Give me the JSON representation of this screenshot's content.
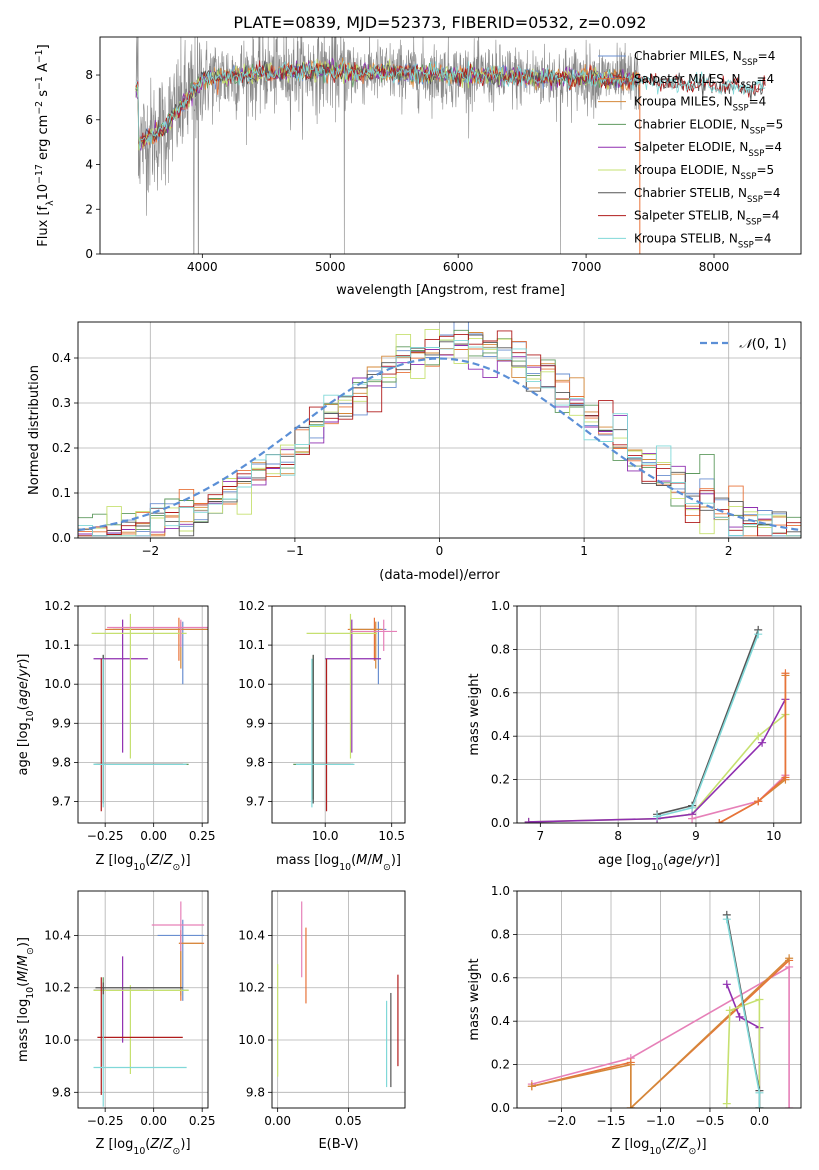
{
  "title": "PLATE=0839, MJD=52373, FIBERID=0532, z=0.092",
  "colors": {
    "Chabrier MILES": "#6a8fd0",
    "Salpeter MILES": "#e8733a",
    "Kroupa MILES": "#d4883a",
    "Chabrier ELODIE": "#5f9a5f",
    "Salpeter ELODIE": "#8f2fb0",
    "Kroupa ELODIE": "#c6e070",
    "Chabrier STELIB": "#555555",
    "Salpeter STELIB": "#b01c1c",
    "Kroupa STELIB": "#80d8d8",
    "Pink": "#e680b8",
    "Grid": "#b0b0b0"
  },
  "chart_data": [
    {
      "type": "line",
      "id": "spectrum",
      "xlabel": "wavelength [Angstrom, rest frame]",
      "ylabel": "Flux [f_λ 10^-17 erg cm^-2 s^-1 A^-1]",
      "xlim": [
        3200,
        8680
      ],
      "ylim": [
        0,
        9.7
      ],
      "xticks": [
        4000,
        5000,
        6000,
        7000,
        8000
      ],
      "yticks": [
        0,
        2,
        4,
        6,
        8
      ],
      "grid": false,
      "legend_position": "right",
      "legend": [
        {
          "label": "Chabrier MILES, N_SSP=4",
          "color": "#6a8fd0"
        },
        {
          "label": "Salpeter MILES, N_SSP=4",
          "color": "#e8733a"
        },
        {
          "label": "Kroupa MILES, N_SSP=4",
          "color": "#d4883a"
        },
        {
          "label": "Chabrier ELODIE, N_SSP=5",
          "color": "#5f9a5f"
        },
        {
          "label": "Salpeter ELODIE, N_SSP=4",
          "color": "#8f2fb0"
        },
        {
          "label": "Kroupa ELODIE, N_SSP=5",
          "color": "#c6e070"
        },
        {
          "label": "Chabrier STELIB, N_SSP=4",
          "color": "#555555"
        },
        {
          "label": "Salpeter STELIB, N_SSP=4",
          "color": "#b01c1c"
        },
        {
          "label": "Kroupa STELIB, N_SSP=4",
          "color": "#80d8d8"
        }
      ],
      "continuum": {
        "x": [
          3500,
          3700,
          4000,
          4500,
          5000,
          5500,
          6000,
          6500,
          7000,
          7500,
          8000,
          8400
        ],
        "y": [
          4.9,
          5.6,
          7.8,
          8.1,
          8.2,
          8.1,
          8.0,
          7.9,
          7.9,
          7.7,
          7.5,
          7.4
        ]
      },
      "data_range": [
        3480,
        7420
      ],
      "model_range": [
        3480,
        8400
      ]
    },
    {
      "type": "histogram",
      "id": "residuals",
      "xlabel": "(data-model)/error",
      "ylabel": "Normed distribution",
      "xlim": [
        -2.5,
        2.5
      ],
      "ylim": [
        0,
        0.48
      ],
      "xticks": [
        -2,
        -1,
        0,
        1,
        2
      ],
      "yticks": [
        0,
        0.1,
        0.2,
        0.3,
        0.4
      ],
      "grid": true,
      "legend": [
        {
          "label": "N(0,1)",
          "color": "#5b8fd6",
          "style": "dashed"
        }
      ],
      "legend_position": "top-right",
      "bin_width": 0.1,
      "bins_from": -2.5,
      "bins_to": 2.5
    },
    {
      "type": "errorbar",
      "id": "age-vs-Z",
      "xlabel": "Z [log10(Z/Z⊙)]",
      "ylabel": "age  [log10(age/yr)]",
      "xlim": [
        -0.39,
        0.28
      ],
      "ylim": [
        9.645,
        10.2
      ],
      "xticks": [
        -0.25,
        0.0,
        0.25
      ],
      "yticks": [
        9.7,
        9.8,
        9.9,
        10.0,
        10.1,
        10.2
      ],
      "grid": true,
      "points": [
        {
          "series": "Chabrier MILES",
          "x": 0.15,
          "y": 10.14,
          "xerr": [
            0.36,
            0.17
          ],
          "yerr": [
            0.14,
            0.02
          ]
        },
        {
          "series": "Salpeter MILES",
          "x": 0.13,
          "y": 10.14,
          "xerr": [
            0.38,
            0.17
          ],
          "yerr": [
            0.08,
            0.03
          ]
        },
        {
          "series": "Kroupa MILES",
          "x": 0.14,
          "y": 10.14,
          "xerr": [
            0.37,
            0.16
          ],
          "yerr": [
            0.1,
            0.02
          ]
        },
        {
          "series": "Chabrier ELODIE",
          "x": -0.26,
          "y": 9.795,
          "xerr": [
            0.05,
            0.44
          ],
          "yerr": [
            0.09,
            0.28
          ]
        },
        {
          "series": "Salpeter ELODIE",
          "x": -0.16,
          "y": 10.065,
          "xerr": [
            0.15,
            0.13
          ],
          "yerr": [
            0.24,
            0.1
          ]
        },
        {
          "series": "Kroupa ELODIE",
          "x": -0.12,
          "y": 10.13,
          "xerr": [
            0.2,
            0.29
          ],
          "yerr": [
            0.32,
            0.05
          ]
        },
        {
          "series": "Chabrier STELIB",
          "x": -0.26,
          "y": 9.795,
          "xerr": [
            0.04,
            0.41
          ],
          "yerr": [
            0.1,
            0.28
          ]
        },
        {
          "series": "Salpeter STELIB",
          "x": -0.27,
          "y": 9.795,
          "xerr": [
            0.02,
            0.42
          ],
          "yerr": [
            0.12,
            0.27
          ]
        },
        {
          "series": "Kroupa STELIB",
          "x": -0.26,
          "y": 9.795,
          "xerr": [
            0.05,
            0.43
          ],
          "yerr": [
            0.11,
            0.27
          ]
        },
        {
          "series": "Pink",
          "x": 0.14,
          "y": 10.145,
          "xerr": [
            0.38,
            0.15
          ],
          "yerr": [
            0.05,
            0.02
          ]
        }
      ]
    },
    {
      "type": "errorbar",
      "id": "age-vs-mass",
      "xlabel": "mass [log10(M/M⊙)]",
      "ylabel": "",
      "xlim": [
        9.6,
        10.6
      ],
      "ylim": [
        9.645,
        10.2
      ],
      "xticks": [
        10.0,
        10.5
      ],
      "yticks": [
        9.7,
        9.8,
        9.9,
        10.0,
        10.1,
        10.2
      ],
      "grid": true,
      "points": [
        {
          "series": "Chabrier MILES",
          "x": 10.4,
          "y": 10.14,
          "xerr": [
            0.2,
            0.06
          ],
          "yerr": [
            0.14,
            0.02
          ]
        },
        {
          "series": "Salpeter MILES",
          "x": 10.37,
          "y": 10.14,
          "xerr": [
            0.2,
            0.05
          ],
          "yerr": [
            0.08,
            0.03
          ]
        },
        {
          "series": "Kroupa MILES",
          "x": 10.38,
          "y": 10.14,
          "xerr": [
            0.2,
            0.05
          ],
          "yerr": [
            0.1,
            0.02
          ]
        },
        {
          "series": "Chabrier ELODIE",
          "x": 9.91,
          "y": 9.795,
          "xerr": [
            0.15,
            0.2
          ],
          "yerr": [
            0.09,
            0.28
          ]
        },
        {
          "series": "Salpeter ELODIE",
          "x": 10.2,
          "y": 10.065,
          "xerr": [
            0.2,
            0.22
          ],
          "yerr": [
            0.24,
            0.1
          ]
        },
        {
          "series": "Kroupa ELODIE",
          "x": 10.19,
          "y": 10.13,
          "xerr": [
            0.33,
            0.2
          ],
          "yerr": [
            0.32,
            0.05
          ]
        },
        {
          "series": "Chabrier STELIB",
          "x": 9.91,
          "y": 9.795,
          "xerr": [
            0.1,
            0.3
          ],
          "yerr": [
            0.1,
            0.28
          ]
        },
        {
          "series": "Salpeter STELIB",
          "x": 10.01,
          "y": 9.795,
          "xerr": [
            0.08,
            0.18
          ],
          "yerr": [
            0.12,
            0.27
          ]
        },
        {
          "series": "Kroupa STELIB",
          "x": 9.9,
          "y": 9.795,
          "xerr": [
            0.12,
            0.32
          ],
          "yerr": [
            0.11,
            0.27
          ]
        },
        {
          "series": "Pink",
          "x": 10.44,
          "y": 10.135,
          "xerr": [
            0.25,
            0.1
          ],
          "yerr": [
            0.05,
            0.03
          ]
        }
      ]
    },
    {
      "type": "line",
      "id": "weight-vs-age",
      "xlabel": "age  [log10(age/yr)]",
      "ylabel": "mass weight",
      "xlim": [
        6.7,
        10.35
      ],
      "ylim": [
        0,
        1.0
      ],
      "xticks": [
        7,
        8,
        9,
        10
      ],
      "yticks": [
        0.0,
        0.2,
        0.4,
        0.6,
        0.8,
        1.0
      ],
      "grid": true,
      "series": [
        {
          "name": "Kroupa ELODIE",
          "x": [
            6.85,
            8.5,
            8.95,
            9.8,
            10.15
          ],
          "y": [
            0.005,
            0.02,
            0.04,
            0.4,
            0.5
          ]
        },
        {
          "name": "Salpeter ELODIE",
          "x": [
            6.85,
            8.5,
            8.95,
            9.85,
            10.15
          ],
          "y": [
            0.005,
            0.02,
            0.04,
            0.37,
            0.57
          ]
        },
        {
          "name": "Chabrier STELIB",
          "x": [
            8.5,
            8.95,
            9.8
          ],
          "y": [
            0.04,
            0.08,
            0.89
          ]
        },
        {
          "name": "Kroupa STELIB",
          "x": [
            8.5,
            8.95,
            9.8
          ],
          "y": [
            0.03,
            0.07,
            0.87
          ]
        },
        {
          "name": "Pink",
          "x": [
            8.95,
            9.8,
            10.15
          ],
          "y": [
            0.02,
            0.1,
            0.22
          ]
        },
        {
          "name": "Kroupa MILES",
          "x": [
            9.3,
            9.8,
            10.15,
            10.15
          ],
          "y": [
            0.0,
            0.1,
            0.2,
            0.68
          ]
        },
        {
          "name": "Salpeter MILES",
          "x": [
            9.3,
            9.8,
            10.15,
            10.15
          ],
          "y": [
            0.0,
            0.1,
            0.21,
            0.69
          ]
        }
      ]
    },
    {
      "type": "errorbar",
      "id": "mass-vs-Z",
      "xlabel": "Z [log10(Z/Z⊙)]",
      "ylabel": "mass [log10(M/M⊙)]",
      "xlim": [
        -0.39,
        0.28
      ],
      "ylim": [
        9.74,
        10.57
      ],
      "xticks": [
        -0.25,
        0.0,
        0.25
      ],
      "yticks": [
        9.8,
        10.0,
        10.2,
        10.4
      ],
      "grid": true,
      "points": [
        {
          "series": "Chabrier MILES",
          "x": 0.15,
          "y": 10.4,
          "xerr": [
            0.13,
            0.11
          ],
          "yerr": [
            0.25,
            0.06
          ]
        },
        {
          "series": "Salpeter MILES",
          "x": 0.14,
          "y": 10.37,
          "xerr": [
            0.01,
            0.12
          ],
          "yerr": [
            0.22,
            0.05
          ]
        },
        {
          "series": "Kroupa MILES",
          "x": 0.14,
          "y": 10.37,
          "xerr": [
            0.01,
            0.11
          ],
          "yerr": [
            0.2,
            0.05
          ]
        },
        {
          "series": "Chabrier ELODIE",
          "x": -0.26,
          "y": 10.19,
          "xerr": [
            0.05,
            0.44
          ],
          "yerr": [
            0.15,
            0.05
          ]
        },
        {
          "series": "Salpeter ELODIE",
          "x": -0.16,
          "y": 10.19,
          "xerr": [
            0.15,
            0.13
          ],
          "yerr": [
            0.2,
            0.13
          ]
        },
        {
          "series": "Kroupa ELODIE",
          "x": -0.12,
          "y": 10.19,
          "xerr": [
            0.19,
            0.3
          ],
          "yerr": [
            0.32,
            0.02
          ]
        },
        {
          "series": "Chabrier STELIB",
          "x": -0.26,
          "y": 10.2,
          "xerr": [
            0.04,
            0.41
          ],
          "yerr": [
            0.3,
            0.02
          ]
        },
        {
          "series": "Salpeter STELIB",
          "x": -0.27,
          "y": 10.01,
          "xerr": [
            0.02,
            0.42
          ],
          "yerr": [
            0.22,
            0.23
          ]
        },
        {
          "series": "Kroupa STELIB",
          "x": -0.26,
          "y": 9.895,
          "xerr": [
            0.05,
            0.43
          ],
          "yerr": [
            0.15,
            0.28
          ]
        },
        {
          "series": "Pink",
          "x": 0.14,
          "y": 10.44,
          "xerr": [
            0.15,
            0.12
          ],
          "yerr": [
            0.1,
            0.09
          ]
        }
      ]
    },
    {
      "type": "errorbar",
      "id": "mass-vs-ebv",
      "xlabel": "E(B-V)",
      "ylabel": "",
      "xlim": [
        -0.004,
        0.09
      ],
      "ylim": [
        9.74,
        10.57
      ],
      "xticks": [
        0.0,
        0.05
      ],
      "yticks": [
        9.8,
        10.0,
        10.2,
        10.4
      ],
      "grid": true,
      "points": [
        {
          "series": "Kroupa ELODIE",
          "x": 0.0,
          "y": 10.0,
          "xerr": [
            0,
            0
          ],
          "yerr": [
            0.14,
            0.29
          ]
        },
        {
          "series": "Pink",
          "x": 0.017,
          "y": 10.38,
          "xerr": [
            0,
            0
          ],
          "yerr": [
            0.14,
            0.15
          ]
        },
        {
          "series": "Salpeter MILES",
          "x": 0.02,
          "y": 10.28,
          "xerr": [
            0,
            0
          ],
          "yerr": [
            0.14,
            0.15
          ]
        },
        {
          "series": "Kroupa STELIB",
          "x": 0.077,
          "y": 9.95,
          "xerr": [
            0,
            0
          ],
          "yerr": [
            0.13,
            0.2
          ]
        },
        {
          "series": "Chabrier STELIB",
          "x": 0.08,
          "y": 9.95,
          "xerr": [
            0,
            0
          ],
          "yerr": [
            0.13,
            0.23
          ]
        },
        {
          "series": "Salpeter STELIB",
          "x": 0.085,
          "y": 10.05,
          "xerr": [
            0,
            0
          ],
          "yerr": [
            0.15,
            0.2
          ]
        }
      ]
    },
    {
      "type": "line",
      "id": "weight-vs-Z",
      "xlabel": "Z [log10(Z/Z⊙)]",
      "ylabel": "mass weight",
      "xlim": [
        -2.45,
        0.42
      ],
      "ylim": [
        0,
        1.0
      ],
      "xticks": [
        -2.0,
        -1.5,
        -1.0,
        -0.5,
        0.0
      ],
      "yticks": [
        0.0,
        0.2,
        0.4,
        0.6,
        0.8,
        1.0
      ],
      "grid": true,
      "series": [
        {
          "name": "Pink",
          "x": [
            -2.3,
            -1.3,
            0.3,
            0.3
          ],
          "y": [
            0.11,
            0.23,
            0.65,
            0.0
          ]
        },
        {
          "name": "Salpeter MILES",
          "x": [
            -2.3,
            -1.3,
            -1.3,
            0.3
          ],
          "y": [
            0.1,
            0.21,
            0.0,
            0.68
          ]
        },
        {
          "name": "Kroupa MILES",
          "x": [
            -2.3,
            -1.3,
            -1.3,
            0.3
          ],
          "y": [
            0.1,
            0.2,
            0.0,
            0.69
          ]
        },
        {
          "name": "Salpeter ELODIE",
          "x": [
            -0.33,
            -0.2,
            0.0,
            0.0
          ],
          "y": [
            0.57,
            0.42,
            0.37,
            0.0
          ]
        },
        {
          "name": "Kroupa ELODIE",
          "x": [
            -0.33,
            -0.3,
            0.0,
            0.0
          ],
          "y": [
            0.02,
            0.45,
            0.5,
            0.0
          ]
        },
        {
          "name": "Chabrier STELIB",
          "x": [
            -0.33,
            0.0,
            0.0
          ],
          "y": [
            0.89,
            0.08,
            0.0
          ]
        },
        {
          "name": "Kroupa STELIB",
          "x": [
            -0.33,
            0.0,
            0.0
          ],
          "y": [
            0.87,
            0.07,
            0.0
          ]
        }
      ]
    }
  ]
}
